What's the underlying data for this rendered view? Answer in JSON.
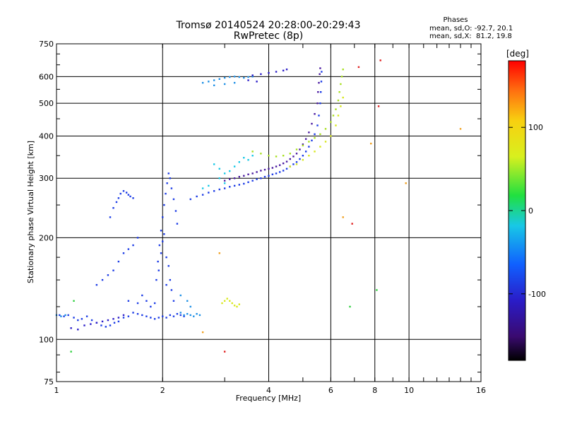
{
  "chart_data": {
    "type": "scatter",
    "title": "Tromsø 20140524 20:28:00-20:29:43",
    "subtitle": "RwPretec (8p)",
    "xlabel": "Frequency [MHz]",
    "ylabel": "Stationary phase Virtual Height [km]",
    "x_scale": "log",
    "y_scale": "log",
    "xlim": [
      1,
      16
    ],
    "ylim": [
      75,
      750
    ],
    "x_ticks": [
      "1",
      "2",
      "4",
      "6",
      "8",
      "10",
      "16"
    ],
    "y_ticks": [
      "75",
      "100",
      "200",
      "300",
      "400",
      "500",
      "600",
      "750"
    ],
    "x_tick_values": [
      1,
      2,
      4,
      6,
      8,
      10,
      16
    ],
    "y_tick_values": [
      75,
      100,
      200,
      300,
      400,
      500,
      600,
      750
    ],
    "grid": true,
    "stats": {
      "heading": "Phases",
      "line1": "mean, sd,O: -92.7, 20.1",
      "line2": "mean, sd,X:  81.2, 19.8"
    },
    "colorbar": {
      "unit": "[deg]",
      "ticks": [
        "100",
        "0",
        "-100"
      ],
      "tick_values": [
        100,
        0,
        -100
      ],
      "range": [
        -180,
        180
      ]
    },
    "colors": {
      "blue": "#1c3ce6",
      "dark_blue": "#2a1cc8",
      "cyan_blue": "#1e90e6",
      "cyan": "#18c8e6",
      "purple": "#4a1aa0",
      "yellow": "#d8e81e",
      "yellow_green": "#a8e020",
      "green": "#30d040",
      "orange": "#f0a020",
      "red": "#e02020"
    },
    "series": [
      {
        "color": "#1c3ce6",
        "points": [
          [
            1.02,
            118
          ],
          [
            1.05,
            117
          ],
          [
            1.08,
            118
          ],
          [
            1.12,
            116
          ],
          [
            1.15,
            114
          ],
          [
            1.18,
            115
          ],
          [
            1.22,
            117
          ],
          [
            1.26,
            114
          ],
          [
            1.3,
            112
          ],
          [
            1.34,
            110
          ],
          [
            1.38,
            109
          ],
          [
            1.42,
            110
          ],
          [
            1.46,
            112
          ],
          [
            1.5,
            113
          ],
          [
            1.55,
            116
          ],
          [
            1.6,
            117
          ],
          [
            1.65,
            120
          ],
          [
            1.7,
            119
          ],
          [
            1.75,
            118
          ],
          [
            1.8,
            117
          ],
          [
            1.85,
            116
          ],
          [
            1.9,
            115
          ],
          [
            1.95,
            116
          ],
          [
            2.0,
            117
          ],
          [
            2.05,
            116
          ],
          [
            2.1,
            118
          ],
          [
            2.15,
            117
          ],
          [
            2.2,
            119
          ],
          [
            2.25,
            118
          ],
          [
            2.3,
            117
          ]
        ]
      },
      {
        "color": "#2a1cc8",
        "points": [
          [
            1.1,
            108
          ],
          [
            1.15,
            107
          ],
          [
            1.2,
            110
          ],
          [
            1.25,
            111
          ],
          [
            1.3,
            112
          ],
          [
            1.35,
            113
          ],
          [
            1.4,
            114
          ],
          [
            1.45,
            115
          ],
          [
            1.5,
            116
          ],
          [
            1.55,
            118
          ]
        ]
      },
      {
        "color": "#1c3ce6",
        "points": [
          [
            1.3,
            145
          ],
          [
            1.35,
            150
          ],
          [
            1.4,
            155
          ],
          [
            1.45,
            160
          ],
          [
            1.5,
            170
          ],
          [
            1.55,
            180
          ],
          [
            1.6,
            185
          ],
          [
            1.65,
            190
          ],
          [
            1.7,
            200
          ],
          [
            1.42,
            230
          ],
          [
            1.45,
            245
          ],
          [
            1.48,
            255
          ],
          [
            1.5,
            262
          ],
          [
            1.52,
            270
          ],
          [
            1.55,
            275
          ],
          [
            1.58,
            272
          ],
          [
            1.6,
            268
          ],
          [
            1.62,
            265
          ],
          [
            1.65,
            262
          ]
        ]
      },
      {
        "color": "#1c3ce6",
        "points": [
          [
            1.6,
            130
          ],
          [
            1.7,
            128
          ],
          [
            1.75,
            135
          ],
          [
            1.8,
            130
          ],
          [
            1.85,
            125
          ],
          [
            1.9,
            128
          ],
          [
            1.92,
            150
          ],
          [
            1.94,
            170
          ],
          [
            1.96,
            190
          ],
          [
            1.98,
            210
          ],
          [
            2.0,
            230
          ],
          [
            2.02,
            250
          ],
          [
            2.04,
            270
          ],
          [
            2.06,
            290
          ],
          [
            2.08,
            310
          ],
          [
            2.1,
            300
          ],
          [
            2.12,
            280
          ],
          [
            2.15,
            260
          ],
          [
            2.18,
            240
          ],
          [
            2.2,
            220
          ],
          [
            2.0,
            195
          ],
          [
            2.02,
            205
          ],
          [
            1.98,
            180
          ],
          [
            2.05,
            175
          ],
          [
            2.08,
            165
          ],
          [
            1.95,
            160
          ],
          [
            2.1,
            150
          ],
          [
            2.12,
            140
          ],
          [
            2.15,
            130
          ],
          [
            2.05,
            145
          ]
        ]
      },
      {
        "color": "#1e90e6",
        "points": [
          [
            2.25,
            120
          ],
          [
            2.3,
            118
          ],
          [
            2.35,
            119
          ],
          [
            2.4,
            118
          ],
          [
            2.45,
            117
          ],
          [
            2.5,
            119
          ],
          [
            2.55,
            118
          ],
          [
            2.35,
            130
          ],
          [
            2.25,
            135
          ],
          [
            2.4,
            125
          ],
          [
            1.0,
            118
          ],
          [
            1.03,
            117
          ],
          [
            1.06,
            118
          ]
        ]
      },
      {
        "color": "#1c3ce6",
        "points": [
          [
            2.4,
            260
          ],
          [
            2.5,
            265
          ],
          [
            2.6,
            268
          ],
          [
            2.7,
            272
          ],
          [
            2.8,
            275
          ],
          [
            2.9,
            278
          ],
          [
            3.0,
            280
          ],
          [
            3.1,
            283
          ],
          [
            3.2,
            285
          ],
          [
            3.3,
            287
          ],
          [
            3.4,
            289
          ],
          [
            3.5,
            292
          ],
          [
            3.6,
            295
          ],
          [
            3.7,
            298
          ],
          [
            3.8,
            300
          ],
          [
            3.9,
            303
          ],
          [
            4.0,
            305
          ],
          [
            4.1,
            308
          ],
          [
            4.2,
            310
          ],
          [
            4.3,
            313
          ],
          [
            4.4,
            316
          ],
          [
            4.5,
            320
          ],
          [
            4.6,
            325
          ],
          [
            4.7,
            330
          ],
          [
            4.8,
            335
          ],
          [
            4.9,
            342
          ],
          [
            5.0,
            350
          ],
          [
            5.1,
            360
          ],
          [
            5.2,
            372
          ],
          [
            5.3,
            388
          ],
          [
            5.4,
            405
          ],
          [
            5.5,
            430
          ],
          [
            5.55,
            460
          ],
          [
            5.6,
            500
          ],
          [
            5.62,
            540
          ],
          [
            5.64,
            580
          ],
          [
            5.65,
            620
          ]
        ]
      },
      {
        "color": "#4a1aa0",
        "points": [
          [
            3.0,
            295
          ],
          [
            3.1,
            298
          ],
          [
            3.2,
            300
          ],
          [
            3.3,
            303
          ],
          [
            3.4,
            305
          ],
          [
            3.5,
            308
          ],
          [
            3.6,
            310
          ],
          [
            3.7,
            313
          ],
          [
            3.8,
            316
          ],
          [
            3.9,
            318
          ],
          [
            4.0,
            320
          ],
          [
            4.1,
            322
          ],
          [
            4.2,
            325
          ],
          [
            4.3,
            328
          ],
          [
            4.4,
            332
          ],
          [
            4.5,
            336
          ],
          [
            4.6,
            342
          ],
          [
            4.7,
            348
          ],
          [
            4.8,
            355
          ],
          [
            4.9,
            365
          ],
          [
            5.0,
            378
          ],
          [
            5.1,
            392
          ],
          [
            5.2,
            410
          ],
          [
            5.3,
            435
          ],
          [
            5.4,
            465
          ],
          [
            5.5,
            500
          ],
          [
            5.52,
            540
          ],
          [
            5.55,
            575
          ],
          [
            5.58,
            610
          ],
          [
            5.6,
            635
          ]
        ]
      },
      {
        "color": "#18c8e6",
        "points": [
          [
            2.8,
            330
          ],
          [
            2.9,
            320
          ],
          [
            3.0,
            310
          ],
          [
            3.1,
            315
          ],
          [
            3.2,
            325
          ],
          [
            3.3,
            335
          ],
          [
            3.4,
            345
          ],
          [
            3.5,
            340
          ],
          [
            3.6,
            350
          ],
          [
            2.9,
            300
          ],
          [
            3.0,
            290
          ],
          [
            2.7,
            285
          ],
          [
            2.6,
            280
          ]
        ]
      },
      {
        "color": "#a8e020",
        "points": [
          [
            3.6,
            360
          ],
          [
            3.8,
            355
          ],
          [
            4.0,
            350
          ],
          [
            4.2,
            348
          ],
          [
            4.4,
            350
          ],
          [
            4.6,
            355
          ],
          [
            4.8,
            365
          ],
          [
            5.0,
            375
          ],
          [
            5.2,
            385
          ],
          [
            5.4,
            395
          ],
          [
            5.6,
            405
          ],
          [
            5.8,
            420
          ],
          [
            6.0,
            440
          ],
          [
            6.1,
            460
          ],
          [
            6.2,
            480
          ],
          [
            6.3,
            510
          ],
          [
            6.35,
            540
          ],
          [
            6.4,
            570
          ],
          [
            6.45,
            600
          ],
          [
            6.5,
            630
          ]
        ]
      },
      {
        "color": "#d8e81e",
        "points": [
          [
            4.6,
            325
          ],
          [
            4.8,
            330
          ],
          [
            5.0,
            340
          ],
          [
            5.2,
            350
          ],
          [
            5.4,
            360
          ],
          [
            5.6,
            372
          ],
          [
            5.8,
            385
          ],
          [
            6.0,
            400
          ],
          [
            6.2,
            430
          ],
          [
            6.3,
            460
          ],
          [
            6.4,
            490
          ],
          [
            6.5,
            520
          ]
        ]
      },
      {
        "color": "#1e90e6",
        "points": [
          [
            2.6,
            575
          ],
          [
            2.7,
            580
          ],
          [
            2.8,
            585
          ],
          [
            2.9,
            590
          ],
          [
            3.0,
            595
          ],
          [
            3.1,
            598
          ],
          [
            3.2,
            600
          ],
          [
            3.3,
            598
          ],
          [
            3.4,
            595
          ],
          [
            3.5,
            598
          ],
          [
            3.6,
            600
          ],
          [
            2.8,
            565
          ],
          [
            3.0,
            570
          ],
          [
            3.2,
            575
          ]
        ]
      },
      {
        "color": "#2a1cc8",
        "points": [
          [
            3.6,
            605
          ],
          [
            3.8,
            610
          ],
          [
            4.0,
            615
          ],
          [
            4.2,
            620
          ],
          [
            4.4,
            625
          ],
          [
            4.5,
            630
          ],
          [
            3.5,
            585
          ],
          [
            3.7,
            580
          ]
        ]
      },
      {
        "color": "#d8e81e",
        "points": [
          [
            2.95,
            128
          ],
          [
            3.0,
            130
          ],
          [
            3.05,
            132
          ],
          [
            3.1,
            130
          ],
          [
            3.15,
            128
          ],
          [
            3.2,
            126
          ],
          [
            3.25,
            125
          ],
          [
            3.3,
            127
          ]
        ]
      },
      {
        "color": "#e02020",
        "points": [
          [
            8.3,
            670
          ],
          [
            7.2,
            640
          ],
          [
            8.2,
            490
          ],
          [
            6.9,
            220
          ],
          [
            3.0,
            92
          ]
        ]
      },
      {
        "color": "#f0a020",
        "points": [
          [
            7.8,
            380
          ],
          [
            9.8,
            290
          ],
          [
            14,
            420
          ],
          [
            2.9,
            180
          ],
          [
            2.6,
            105
          ],
          [
            6.5,
            230
          ]
        ]
      },
      {
        "color": "#30d040",
        "points": [
          [
            1.1,
            92
          ],
          [
            6.8,
            125
          ],
          [
            8.1,
            140
          ],
          [
            1.12,
            130
          ]
        ]
      }
    ]
  }
}
